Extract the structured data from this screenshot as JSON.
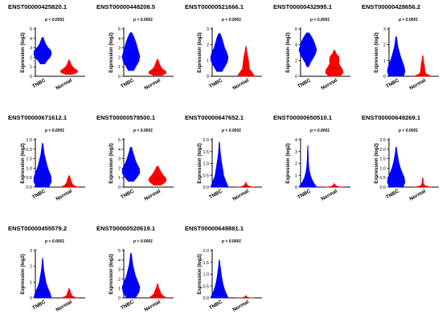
{
  "colors": {
    "tnbc": "#0000ff",
    "normal": "#ff0000",
    "axis": "#000000"
  },
  "chart_data": [
    {
      "type": "violin",
      "title": "ENST00000425820.1",
      "annotation": "p < 0.0001",
      "ylabel": "Expression (log2)",
      "categories": [
        "TNBC",
        "Normal"
      ],
      "ylim": [
        0,
        5
      ],
      "yticks": [
        0,
        1,
        2,
        3,
        4,
        5
      ],
      "series": [
        {
          "name": "TNBC",
          "range": [
            1.3,
            4.1
          ],
          "median": 2.3,
          "profile": [
            0.25,
            0.5,
            0.85,
            1,
            0.95,
            0.6,
            0.35,
            0.2,
            0.08
          ]
        },
        {
          "name": "Normal",
          "range": [
            0.2,
            1.7
          ],
          "median": 0.6,
          "profile": [
            0.4,
            0.9,
            1,
            0.7,
            0.45,
            0.3,
            0.2,
            0.12,
            0.05
          ]
        }
      ]
    },
    {
      "type": "violin",
      "title": "ENST00000448208.5",
      "annotation": "p < 0.0001",
      "ylabel": "Expression (log2)",
      "categories": [
        "TNBC",
        "Normal"
      ],
      "ylim": [
        0,
        5
      ],
      "yticks": [
        0,
        1,
        2,
        3,
        4,
        5
      ],
      "series": [
        {
          "name": "TNBC",
          "range": [
            0.6,
            4.6
          ],
          "median": 2.3,
          "profile": [
            0.3,
            0.6,
            0.9,
            1,
            0.85,
            0.7,
            0.55,
            0.35,
            0.1
          ]
        },
        {
          "name": "Normal",
          "range": [
            0.1,
            1.8
          ],
          "median": 0.6,
          "profile": [
            0.5,
            1,
            0.95,
            0.6,
            0.4,
            0.3,
            0.2,
            0.12,
            0.05
          ]
        }
      ]
    },
    {
      "type": "violin",
      "title": "ENST00000521666.1",
      "annotation": "p < 0.0001",
      "ylabel": "Expression (log2)",
      "categories": [
        "TNBC",
        "Normal"
      ],
      "ylim": [
        0,
        3
      ],
      "yticks": [
        0,
        1,
        2,
        3
      ],
      "series": [
        {
          "name": "TNBC",
          "range": [
            0.3,
            2.7
          ],
          "median": 1.5,
          "profile": [
            0.3,
            0.6,
            0.9,
            1,
            0.85,
            0.6,
            0.45,
            0.3,
            0.1
          ]
        },
        {
          "name": "Normal",
          "range": [
            0.0,
            1.9
          ],
          "median": 0.3,
          "profile": [
            1,
            0.7,
            0.4,
            0.35,
            0.3,
            0.25,
            0.15,
            0.08,
            0.03
          ]
        }
      ]
    },
    {
      "type": "violin",
      "title": "ENST00000432995.1",
      "annotation": "p < 0.0001",
      "ylabel": "Expression (log2)",
      "categories": [
        "TNBC",
        "Normal"
      ],
      "ylim": [
        0,
        6
      ],
      "yticks": [
        0,
        2,
        4,
        6
      ],
      "series": [
        {
          "name": "TNBC",
          "range": [
            1.2,
            5.5
          ],
          "median": 3.3,
          "profile": [
            0.1,
            0.3,
            0.6,
            0.85,
            1,
            0.85,
            0.7,
            0.45,
            0.15
          ]
        },
        {
          "name": "Normal",
          "range": [
            0.0,
            3.3
          ],
          "median": 1.0,
          "profile": [
            0.6,
            1,
            0.95,
            0.7,
            0.5,
            0.55,
            0.5,
            0.2,
            0.05
          ]
        }
      ]
    },
    {
      "type": "violin",
      "title": "ENST00000428656.2",
      "annotation": "p < 0.0001",
      "ylabel": "Expression (log2)",
      "categories": [
        "TNBC",
        "Normal"
      ],
      "ylim": [
        0,
        3
      ],
      "yticks": [
        0,
        1,
        2,
        3
      ],
      "series": [
        {
          "name": "TNBC",
          "range": [
            0.0,
            2.5
          ],
          "median": 1.0,
          "profile": [
            0.85,
            1,
            0.9,
            0.7,
            0.5,
            0.35,
            0.2,
            0.12,
            0.05
          ]
        },
        {
          "name": "Normal",
          "range": [
            0.0,
            1.3
          ],
          "median": 0.1,
          "profile": [
            1,
            0.35,
            0.25,
            0.22,
            0.2,
            0.15,
            0.1,
            0.06,
            0.03
          ]
        }
      ]
    },
    {
      "type": "violin",
      "title": "ENST00000671612.1",
      "annotation": "p < 0.0001",
      "ylabel": "Expression (log2)",
      "categories": [
        "TNBC",
        "Normal"
      ],
      "ylim": [
        0,
        2.5
      ],
      "yticks": [
        0.0,
        0.5,
        1.0,
        1.5,
        2.0,
        2.5
      ],
      "series": [
        {
          "name": "TNBC",
          "range": [
            0.0,
            2.3
          ],
          "median": 0.7,
          "profile": [
            0.7,
            1,
            0.95,
            0.7,
            0.5,
            0.35,
            0.2,
            0.12,
            0.05
          ]
        },
        {
          "name": "Normal",
          "range": [
            0.0,
            0.6
          ],
          "median": 0.1,
          "profile": [
            1,
            0.6,
            0.4,
            0.3,
            0.25,
            0.2,
            0.15,
            0.1,
            0.05
          ]
        }
      ]
    },
    {
      "type": "violin",
      "title": "ENST00000578500.1",
      "annotation": "p < 0.0001",
      "ylabel": "Expression (log2)",
      "categories": [
        "TNBC",
        "Normal"
      ],
      "ylim": [
        0,
        5
      ],
      "yticks": [
        0,
        1,
        2,
        3,
        4,
        5
      ],
      "series": [
        {
          "name": "TNBC",
          "range": [
            0.6,
            4.2
          ],
          "median": 2.0,
          "profile": [
            0.3,
            0.7,
            1,
            0.95,
            0.7,
            0.5,
            0.35,
            0.2,
            0.08
          ]
        },
        {
          "name": "Normal",
          "range": [
            0.2,
            2.2
          ],
          "median": 1.0,
          "profile": [
            0.4,
            0.8,
            1,
            0.95,
            0.7,
            0.5,
            0.35,
            0.2,
            0.08
          ]
        }
      ]
    },
    {
      "type": "violin",
      "title": "ENST00000647652.1",
      "annotation": "p < 0.0001",
      "ylabel": "Expression (log2)",
      "categories": [
        "TNBC",
        "Normal"
      ],
      "ylim": [
        0,
        2.0
      ],
      "yticks": [
        0.0,
        0.5,
        1.0,
        1.5,
        2.0
      ],
      "series": [
        {
          "name": "TNBC",
          "range": [
            0.0,
            1.9
          ],
          "median": 0.3,
          "profile": [
            1,
            0.75,
            0.5,
            0.4,
            0.3,
            0.2,
            0.12,
            0.07,
            0.03
          ]
        },
        {
          "name": "Normal",
          "range": [
            0.0,
            0.2
          ],
          "median": 0.02,
          "profile": [
            1,
            0.5,
            0.3,
            0.2,
            0.15,
            0.1,
            0.06,
            0.04,
            0.02
          ]
        }
      ]
    },
    {
      "type": "violin",
      "title": "ENST00000650510.1",
      "annotation": "p < 0.0001",
      "ylabel": "Expression (log2)",
      "categories": [
        "TNBC",
        "Normal"
      ],
      "ylim": [
        0,
        4
      ],
      "yticks": [
        0,
        1,
        2,
        3,
        4
      ],
      "series": [
        {
          "name": "TNBC",
          "range": [
            0.0,
            3.5
          ],
          "median": 0.4,
          "profile": [
            1,
            0.6,
            0.35,
            0.2,
            0.12,
            0.08,
            0.06,
            0.04,
            0.02
          ]
        },
        {
          "name": "Normal",
          "range": [
            0.0,
            0.3
          ],
          "median": 0.02,
          "profile": [
            1,
            0.5,
            0.3,
            0.2,
            0.15,
            0.1,
            0.06,
            0.04,
            0.02
          ]
        }
      ]
    },
    {
      "type": "violin",
      "title": "ENST00000649269.1",
      "annotation": "p < 0.0001",
      "ylabel": "Expression (log2)",
      "categories": [
        "TNBC",
        "Normal"
      ],
      "ylim": [
        0,
        2.5
      ],
      "yticks": [
        0.0,
        0.5,
        1.0,
        1.5,
        2.0,
        2.5
      ],
      "series": [
        {
          "name": "TNBC",
          "range": [
            0.0,
            2.1
          ],
          "median": 0.7,
          "profile": [
            0.8,
            1,
            0.9,
            0.65,
            0.45,
            0.3,
            0.2,
            0.1,
            0.04
          ]
        },
        {
          "name": "Normal",
          "range": [
            0.0,
            0.5
          ],
          "median": 0.02,
          "profile": [
            1,
            0.3,
            0.15,
            0.1,
            0.08,
            0.06,
            0.05,
            0.04,
            0.02
          ]
        }
      ]
    },
    {
      "type": "violin",
      "title": "ENST00000455579.2",
      "annotation": "p < 0.0001",
      "ylabel": "Expression (log2)",
      "categories": [
        "TNBC",
        "Normal"
      ],
      "ylim": [
        0,
        3
      ],
      "yticks": [
        0,
        1,
        2,
        3
      ],
      "series": [
        {
          "name": "TNBC",
          "range": [
            0.0,
            2.5
          ],
          "median": 0.5,
          "profile": [
            1,
            0.85,
            0.6,
            0.4,
            0.3,
            0.2,
            0.12,
            0.07,
            0.03
          ]
        },
        {
          "name": "Normal",
          "range": [
            0.0,
            0.6
          ],
          "median": 0.05,
          "profile": [
            1,
            0.5,
            0.3,
            0.25,
            0.2,
            0.15,
            0.1,
            0.06,
            0.03
          ]
        }
      ]
    },
    {
      "type": "violin",
      "title": "ENST00000520619.1",
      "annotation": "p < 0.0001",
      "ylabel": "Expression (log2)",
      "categories": [
        "TNBC",
        "Normal"
      ],
      "ylim": [
        0,
        5
      ],
      "yticks": [
        0,
        1,
        2,
        3,
        4,
        5
      ],
      "series": [
        {
          "name": "TNBC",
          "range": [
            0.0,
            4.7
          ],
          "median": 1.5,
          "profile": [
            0.5,
            0.9,
            1,
            0.75,
            0.5,
            0.35,
            0.2,
            0.12,
            0.05
          ]
        },
        {
          "name": "Normal",
          "range": [
            0.0,
            1.5
          ],
          "median": 0.2,
          "profile": [
            1,
            0.7,
            0.45,
            0.35,
            0.3,
            0.2,
            0.12,
            0.07,
            0.03
          ]
        }
      ]
    },
    {
      "type": "violin",
      "title": "ENST00000649881.1",
      "annotation": "p < 0.0001",
      "ylabel": "Expression (log2)",
      "categories": [
        "TNBC",
        "Normal"
      ],
      "ylim": [
        0,
        2.0
      ],
      "yticks": [
        0.0,
        0.5,
        1.0,
        1.5,
        2.0
      ],
      "series": [
        {
          "name": "TNBC",
          "range": [
            0.0,
            1.6
          ],
          "median": 0.2,
          "profile": [
            1,
            0.75,
            0.55,
            0.4,
            0.3,
            0.22,
            0.15,
            0.08,
            0.03
          ]
        },
        {
          "name": "Normal",
          "range": [
            0.0,
            0.1
          ],
          "median": 0.01,
          "profile": [
            1,
            0.4,
            0.2,
            0.15,
            0.1,
            0.08,
            0.06,
            0.04,
            0.02
          ]
        }
      ]
    }
  ]
}
